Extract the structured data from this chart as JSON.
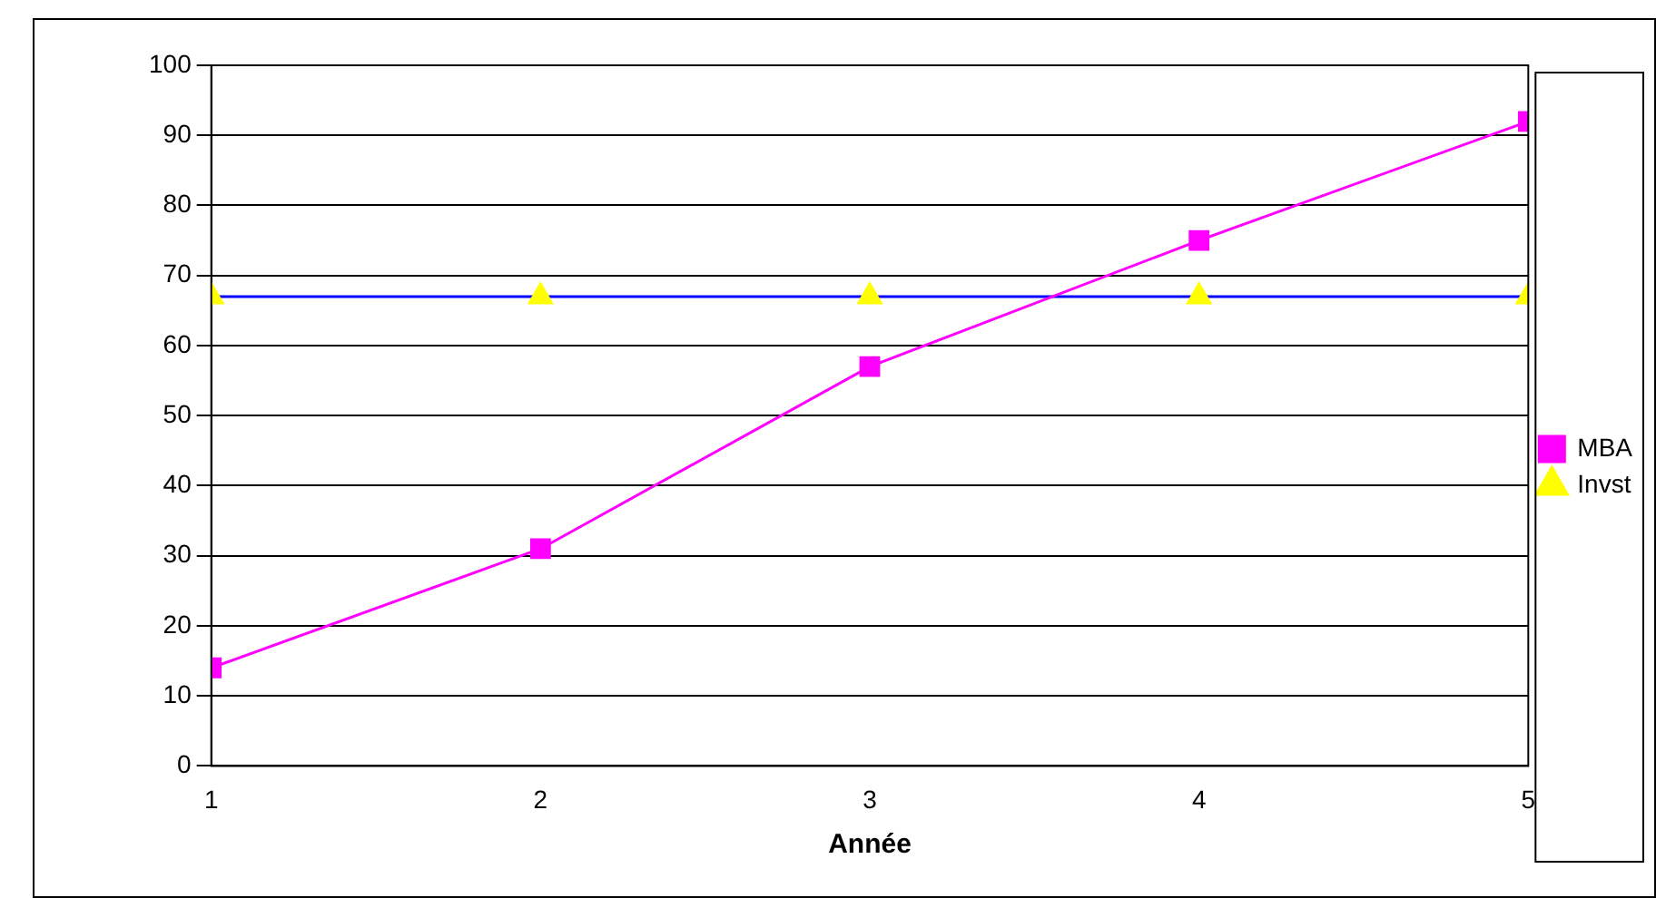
{
  "chart_data": {
    "type": "line",
    "xlabel": "Année",
    "x": [
      1,
      2,
      3,
      4,
      5
    ],
    "series": [
      {
        "name": "MBA",
        "color": "#ff00ff",
        "marker": "square",
        "values": [
          14,
          31,
          57,
          75,
          92
        ]
      },
      {
        "name": "Invst",
        "color": "#0000ff",
        "colors": [
          "#ffff00",
          "#ffff00",
          "#ffff00",
          "#ffff00",
          "#ffff00"
        ],
        "marker": "triangle",
        "values": [
          67,
          67,
          67,
          67,
          67
        ]
      }
    ],
    "xlim": [
      1,
      5
    ],
    "xticks": [
      1,
      2,
      3,
      4,
      5
    ],
    "ylim": [
      0,
      100
    ],
    "yticks": [
      0,
      10,
      20,
      30,
      40,
      50,
      60,
      70,
      80,
      90,
      100
    ],
    "grid": "y",
    "legend": "right"
  }
}
